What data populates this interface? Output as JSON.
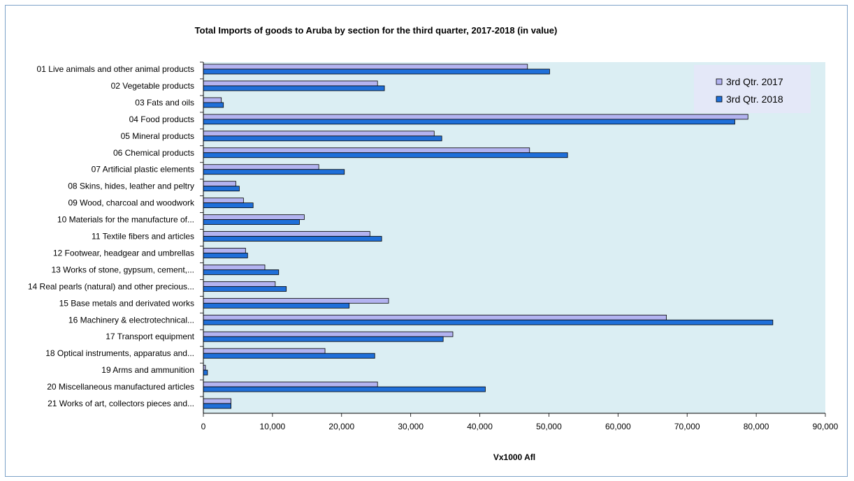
{
  "chart_data": {
    "type": "bar",
    "orientation": "horizontal",
    "title": "Total Imports of goods to Aruba by section for the third quarter, 2017-2018 (in value)",
    "xlabel": "Vx1000 Afl",
    "ylabel": "",
    "xlim": [
      0,
      90000
    ],
    "xticks": [
      "0",
      "10,000",
      "20,000",
      "30,000",
      "40,000",
      "50,000",
      "60,000",
      "70,000",
      "80,000",
      "90,000"
    ],
    "grid": false,
    "legend_position": "top-right",
    "colors": {
      "plot_background": "#dbeef3",
      "series_2017": "#b3b3f0",
      "series_2018": "#1f6fd9",
      "bar_border": "#000000",
      "frame_border": "#7da2c8"
    },
    "categories": [
      "01 Live animals and other animal products",
      "02 Vegetable products",
      "03 Fats and oils",
      "04 Food products",
      "05 Mineral products",
      "06 Chemical products",
      "07 Artificial plastic elements",
      "08 Skins, hides, leather and peltry",
      "09 Wood, charcoal and woodwork",
      "10 Materials for the manufacture of...",
      "11 Textile fibers and articles",
      "12 Footwear, headgear and umbrellas",
      "13 Works of stone, gypsum, cement,...",
      "14 Real pearls (natural) and other precious...",
      "15 Base metals and derivated works",
      "16 Machinery & electrotechnical...",
      "17 Transport equipment",
      "18 Optical instruments, apparatus and...",
      "19 Arms and ammunition",
      "20 Miscellaneous manufactured articles",
      "21 Works of art, collectors pieces and..."
    ],
    "series": [
      {
        "name": "3rd Qtr. 2017",
        "values": [
          46900,
          25200,
          2600,
          78800,
          33400,
          47200,
          16700,
          4700,
          5800,
          14600,
          24100,
          6100,
          8900,
          10400,
          26800,
          67000,
          36100,
          17600,
          300,
          25200,
          4000
        ]
      },
      {
        "name": "3rd Qtr. 2018",
        "values": [
          50100,
          26200,
          2900,
          76900,
          34500,
          52700,
          20400,
          5200,
          7200,
          13900,
          25800,
          6400,
          10900,
          12000,
          21100,
          82400,
          34700,
          24800,
          600,
          40800,
          4000
        ]
      }
    ]
  }
}
